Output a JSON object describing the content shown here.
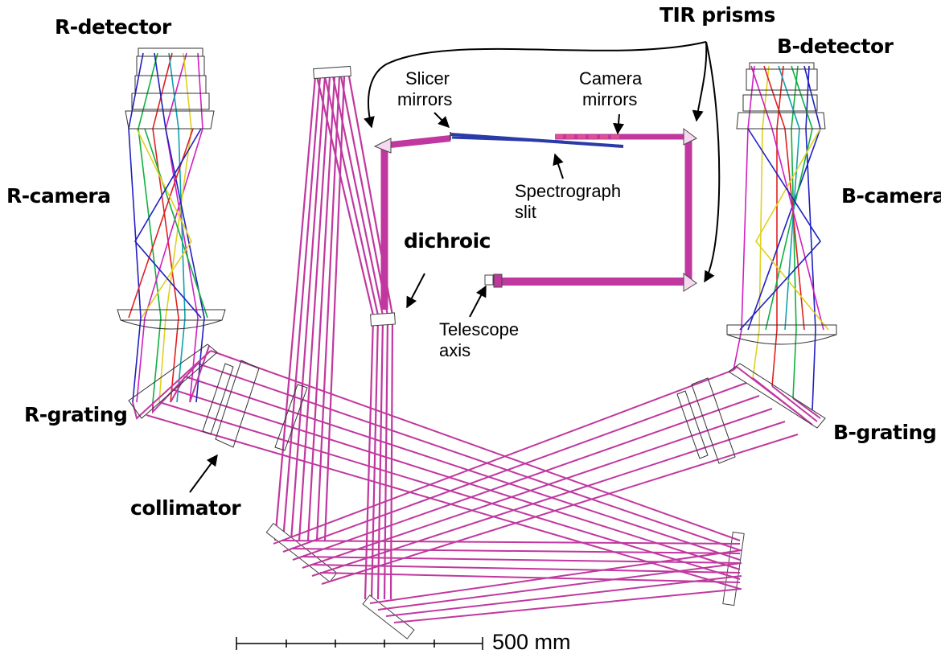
{
  "labels": {
    "r_detector": "R-detector",
    "r_camera": "R-camera",
    "r_grating": "R-grating",
    "collimator": "collimator",
    "b_detector": "B-detector",
    "b_camera": "B-camera",
    "b_grating": "B-grating",
    "tir_prisms": "TIR prisms",
    "slicer_mirrors_1": "Slicer",
    "slicer_mirrors_2": "mirrors",
    "camera_mirrors_1": "Camera",
    "camera_mirrors_2": "mirrors",
    "spectrograph_slit_1": "Spectrograph",
    "spectrograph_slit_2": "slit",
    "dichroic": "dichroic",
    "telescope_axis_1": "Telescope",
    "telescope_axis_2": "axis"
  },
  "scale_bar": {
    "label": "500 mm"
  },
  "colors": {
    "beam": "#c0389f",
    "beam_light": "#cc55b0",
    "ray_blue": "#2020c0",
    "ray_green": "#10b040",
    "ray_red": "#e02020",
    "ray_yellow": "#e0d020",
    "ray_cyan": "#10a0b0",
    "ray_magenta": "#d020c0",
    "optic": "#444444"
  }
}
